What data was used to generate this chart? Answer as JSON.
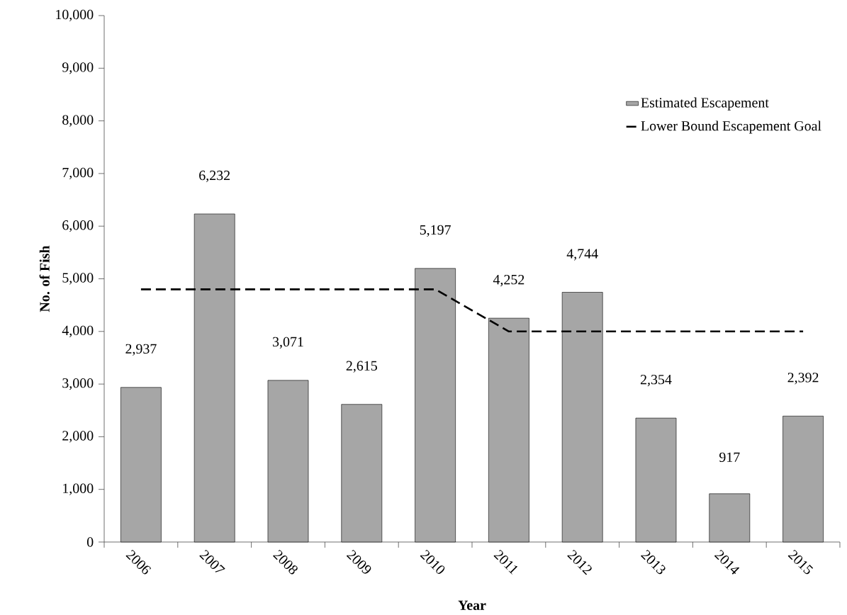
{
  "chart_data": {
    "type": "bar",
    "xlabel": "Year",
    "ylabel": "No. of Fish",
    "categories": [
      "2006",
      "2007",
      "2008",
      "2009",
      "2010",
      "2011",
      "2012",
      "2013",
      "2014",
      "2015"
    ],
    "series": [
      {
        "name": "Estimated Escapement",
        "color": "#a6a6a6",
        "values": [
          2937,
          6232,
          3071,
          2615,
          5197,
          4252,
          4744,
          2354,
          917,
          2392
        ],
        "value_labels": [
          "2,937",
          "6,232",
          "3,071",
          "2,615",
          "5,197",
          "4,252",
          "4,744",
          "2,354",
          "917",
          "2,392"
        ]
      },
      {
        "name": "Lower Bound Escapement Goal",
        "type": "line",
        "color": "#000000",
        "line_style": "dashed",
        "marker": "none",
        "values": [
          4800,
          4800,
          4800,
          4800,
          4800,
          4000,
          4000,
          4000,
          4000,
          4000
        ]
      }
    ],
    "ylim": [
      0,
      10000
    ],
    "yticks": [
      0,
      {
        "value": 1000,
        "label": "1,000"
      },
      {
        "value": 2000,
        "label": "2,000"
      },
      {
        "value": 3000,
        "label": "3,000"
      },
      {
        "value": 4000,
        "label": "4,000"
      },
      {
        "value": 5000,
        "label": "5,000"
      },
      {
        "value": 6000,
        "label": "6,000"
      },
      {
        "value": 7000,
        "label": "7,000"
      },
      {
        "value": 8000,
        "label": "8,000"
      },
      {
        "value": 9000,
        "label": "9,000"
      },
      {
        "value": 10000,
        "label": "10,000"
      }
    ],
    "grid": false,
    "legend": "top right"
  }
}
